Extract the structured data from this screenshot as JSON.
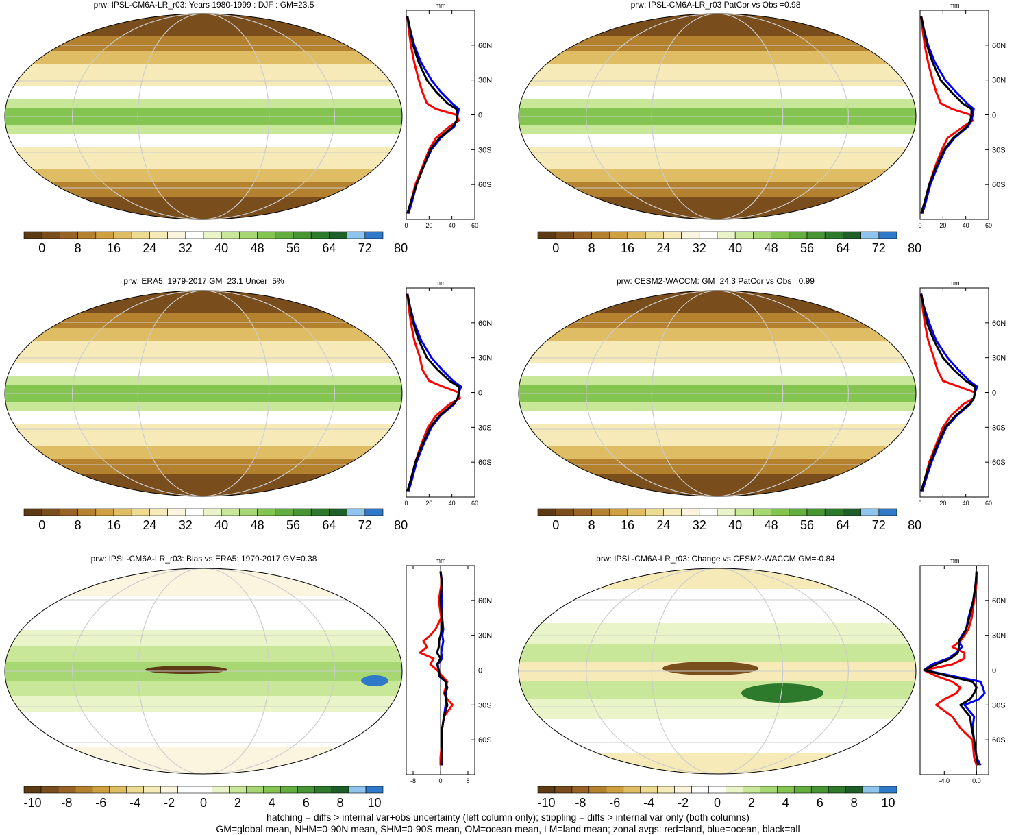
{
  "colors": {
    "prw_scale": [
      "#5c3a14",
      "#7a4e1c",
      "#986426",
      "#b4822f",
      "#cfa03f",
      "#dfbd64",
      "#eedb92",
      "#f6eab9",
      "#fbf5df",
      "#ffffff",
      "#e9f4c8",
      "#c9e799",
      "#a7d772",
      "#84c451",
      "#63ae3e",
      "#479533",
      "#2e7a2c",
      "#1e5f29",
      "#8ec4ee",
      "#2f79c9"
    ],
    "bias_scale": [
      "#5c3a14",
      "#7a4e1c",
      "#986426",
      "#b4822f",
      "#cfa03f",
      "#dfbd64",
      "#eedb92",
      "#f6eab9",
      "#fbf5df",
      "#ffffff",
      "#ffffff",
      "#e9f4c8",
      "#c9e799",
      "#a7d772",
      "#84c451",
      "#63ae3e",
      "#479533",
      "#2e7a2c",
      "#1e5f29",
      "#8ec4ee",
      "#2f79c9"
    ],
    "land_line": "#ff0000",
    "ocean_line": "#0000ff",
    "all_line": "#000000"
  },
  "footer": {
    "line1": "hatching = diffs > internal var+obs uncertainty (left column only); stippling = diffs > internal var only (both columns)",
    "line2": "GM=global mean, NHM=0-90N mean, SHM=0-90S mean, OM=ocean mean, LM=land mean; zonal avgs: red=land, blue=ocean, black=all"
  },
  "chart_data": [
    {
      "type": "heatmap",
      "title": "prw: IPSL-CM6A-LR_r03: Years 1980-1999 : DJF : GM=23.5",
      "colorbar_ticks": [
        "0",
        "8",
        "16",
        "24",
        "32",
        "40",
        "48",
        "56",
        "64",
        "72",
        "80"
      ],
      "zonal": {
        "unit": "mm",
        "xlim": [
          0,
          60
        ],
        "x_ticks": [
          "0",
          "20",
          "40",
          "60"
        ],
        "y_ticks": [
          "60N",
          "30N",
          "0",
          "30S",
          "60S"
        ],
        "lat": [
          85,
          75,
          60,
          45,
          30,
          20,
          10,
          5,
          0,
          -5,
          -10,
          -20,
          -30,
          -45,
          -60,
          -75,
          -85
        ],
        "land": [
          1,
          2,
          4,
          7,
          11,
          14,
          18,
          26,
          44,
          46,
          38,
          26,
          20,
          14,
          8,
          4,
          1
        ],
        "ocean": [
          1,
          3,
          7,
          13,
          22,
          30,
          40,
          46,
          45,
          44,
          42,
          30,
          22,
          15,
          9,
          5,
          2
        ],
        "all": [
          1,
          3,
          6,
          11,
          18,
          26,
          36,
          44,
          45,
          44,
          41,
          29,
          21,
          15,
          9,
          4,
          1
        ]
      }
    },
    {
      "type": "heatmap",
      "title": "prw: IPSL-CM6A-LR_r03 PatCor vs Obs =0.98",
      "colorbar_ticks": [
        "0",
        "8",
        "16",
        "24",
        "32",
        "40",
        "48",
        "56",
        "64",
        "72",
        "80"
      ],
      "zonal": {
        "unit": "mm",
        "xlim": [
          0,
          60
        ],
        "x_ticks": [
          "0",
          "20",
          "40",
          "60"
        ],
        "y_ticks": [
          "60N",
          "30N",
          "0",
          "30S",
          "60S"
        ],
        "lat": [
          85,
          75,
          60,
          45,
          30,
          20,
          10,
          5,
          0,
          -5,
          -10,
          -20,
          -30,
          -45,
          -60,
          -75,
          -85
        ],
        "land": [
          1,
          2,
          4,
          7,
          11,
          14,
          18,
          28,
          44,
          46,
          38,
          24,
          19,
          13,
          8,
          4,
          1
        ],
        "ocean": [
          1,
          3,
          7,
          13,
          22,
          31,
          41,
          47,
          46,
          45,
          42,
          30,
          22,
          15,
          9,
          5,
          2
        ],
        "all": [
          1,
          3,
          6,
          11,
          18,
          27,
          37,
          45,
          45,
          44,
          41,
          29,
          21,
          14,
          8,
          4,
          1
        ]
      }
    },
    {
      "type": "heatmap",
      "title": "prw: ERA5: 1979-2017 GM=23.1 Uncer=5%",
      "colorbar_ticks": [
        "0",
        "8",
        "16",
        "24",
        "32",
        "40",
        "48",
        "56",
        "64",
        "72",
        "80"
      ],
      "zonal": {
        "unit": "mm",
        "xlim": [
          0,
          60
        ],
        "x_ticks": [
          "0",
          "20",
          "40",
          "60"
        ],
        "y_ticks": [
          "60N",
          "30N",
          "0",
          "30S",
          "60S"
        ],
        "lat": [
          85,
          75,
          60,
          45,
          30,
          20,
          10,
          5,
          0,
          -5,
          -10,
          -20,
          -30,
          -45,
          -60,
          -75,
          -85
        ],
        "land": [
          1,
          2,
          4,
          7,
          12,
          14,
          20,
          32,
          46,
          47,
          38,
          26,
          19,
          13,
          8,
          4,
          1
        ],
        "ocean": [
          1,
          3,
          7,
          13,
          22,
          31,
          41,
          48,
          46,
          45,
          42,
          30,
          22,
          15,
          9,
          5,
          2
        ],
        "all": [
          1,
          3,
          6,
          11,
          18,
          27,
          38,
          46,
          46,
          45,
          41,
          29,
          21,
          14,
          8,
          4,
          1
        ]
      }
    },
    {
      "type": "heatmap",
      "title": "prw: CESM2-WACCM: GM=24.3 PatCor vs Obs =0.99",
      "colorbar_ticks": [
        "0",
        "8",
        "16",
        "24",
        "32",
        "40",
        "48",
        "56",
        "64",
        "72",
        "80"
      ],
      "zonal": {
        "unit": "mm",
        "xlim": [
          0,
          60
        ],
        "x_ticks": [
          "0",
          "20",
          "40",
          "60"
        ],
        "y_ticks": [
          "60N",
          "30N",
          "0",
          "30S",
          "60S"
        ],
        "lat": [
          85,
          75,
          60,
          45,
          30,
          20,
          10,
          5,
          0,
          -5,
          -10,
          -20,
          -30,
          -45,
          -60,
          -75,
          -85
        ],
        "land": [
          1,
          2,
          4,
          7,
          12,
          15,
          20,
          34,
          48,
          47,
          38,
          27,
          20,
          14,
          8,
          4,
          1
        ],
        "ocean": [
          1,
          3,
          8,
          14,
          24,
          33,
          43,
          50,
          48,
          47,
          44,
          32,
          23,
          16,
          10,
          5,
          2
        ],
        "all": [
          1,
          3,
          6,
          12,
          20,
          29,
          40,
          48,
          48,
          47,
          43,
          31,
          22,
          15,
          9,
          4,
          1
        ]
      }
    },
    {
      "type": "heatmap",
      "title": "prw: IPSL-CM6A-LR_r03: Bias vs ERA5: 1979-2017 GM=0.38",
      "colorbar_ticks": [
        "-10",
        "-8",
        "-6",
        "-4",
        "-2",
        "0",
        "2",
        "4",
        "6",
        "8",
        "10"
      ],
      "zonal": {
        "unit": "mm",
        "xlim": [
          -10,
          10
        ],
        "x_ticks": [
          "-8",
          "0",
          "8"
        ],
        "y_ticks": [
          "60N",
          "30N",
          "0",
          "30S",
          "60S"
        ],
        "lat": [
          85,
          75,
          60,
          45,
          35,
          30,
          25,
          20,
          15,
          10,
          5,
          0,
          -5,
          -10,
          -15,
          -20,
          -25,
          -30,
          -40,
          -50,
          -60,
          -75,
          -82
        ],
        "land": [
          0,
          0.3,
          -0.5,
          0.2,
          -1.5,
          -3,
          -5,
          -4,
          -6,
          -2,
          -3,
          -1,
          0.5,
          2,
          1.5,
          1,
          2,
          3.5,
          1,
          0.5,
          0.5,
          0,
          0
        ],
        "ocean": [
          0,
          0.5,
          0.3,
          0.5,
          0.8,
          0.5,
          0.8,
          0.5,
          0.2,
          0.5,
          -0.8,
          -0.5,
          -0.5,
          1.5,
          2,
          1.5,
          1.5,
          1.5,
          1,
          0.5,
          0.5,
          0.5,
          0.3
        ],
        "all": [
          0,
          0.4,
          0,
          0.4,
          0.3,
          0,
          -0.5,
          -0.5,
          -1,
          0,
          -1,
          -0.5,
          -0.3,
          1.5,
          1.8,
          1.3,
          1.6,
          2,
          1,
          0.5,
          0.5,
          0.3,
          0.2
        ]
      }
    },
    {
      "type": "heatmap",
      "title": "prw: IPSL-CM6A-LR_r03: Change vs CESM2-WACCM GM=-0.84",
      "colorbar_ticks": [
        "-10",
        "-8",
        "-6",
        "-4",
        "-2",
        "0",
        "2",
        "4",
        "6",
        "8",
        "10"
      ],
      "zonal": {
        "unit": "mm",
        "xlim": [
          -7,
          1.5
        ],
        "x_ticks": [
          "-4.0",
          "0.0"
        ],
        "y_ticks": [
          "60N",
          "30N",
          "0",
          "30S",
          "60S"
        ],
        "lat": [
          85,
          75,
          60,
          45,
          35,
          30,
          25,
          20,
          15,
          10,
          5,
          0,
          -5,
          -10,
          -15,
          -20,
          -25,
          -30,
          -40,
          -50,
          -60,
          -75,
          -82
        ],
        "land": [
          0,
          0,
          -0.3,
          -0.6,
          -1,
          -1.5,
          -2,
          -3,
          -1.5,
          -1.5,
          -3,
          -6.5,
          -5,
          -3,
          -2,
          -2.5,
          -4,
          -5,
          -3,
          -2,
          -0.5,
          -0.3,
          0
        ],
        "ocean": [
          0,
          -0.1,
          -0.4,
          -1,
          -1.3,
          -1.8,
          -2.2,
          -1.8,
          -2.5,
          -3.5,
          -5.5,
          -6.5,
          -3,
          0.5,
          0.8,
          1,
          0.3,
          -1.5,
          -0.3,
          -0.5,
          -0.3,
          0,
          0.5
        ],
        "all": [
          0,
          -0.1,
          -0.4,
          -0.9,
          -1.3,
          -1.7,
          -2.2,
          -2.2,
          -2.3,
          -3.2,
          -5,
          -6.5,
          -3.5,
          -0.5,
          0,
          -0.3,
          -0.8,
          -2,
          -0.8,
          -0.6,
          -0.3,
          0,
          0.2
        ]
      }
    }
  ]
}
